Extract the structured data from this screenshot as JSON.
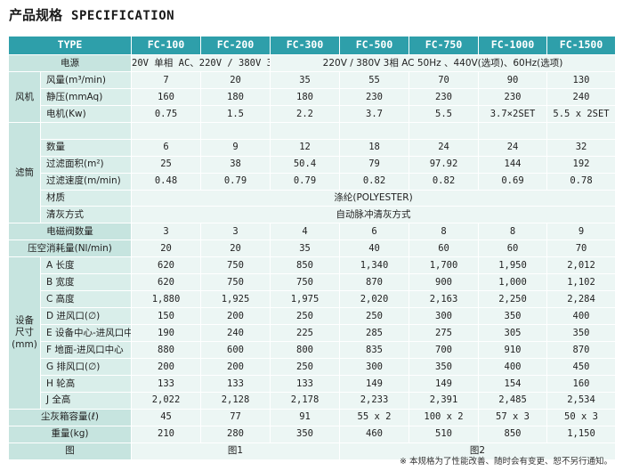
{
  "title": {
    "cn": "产品规格",
    "en": "SPECIFICATION"
  },
  "headers": [
    "TYPE",
    "FC-100",
    "FC-200",
    "FC-300",
    "FC-500",
    "FC-750",
    "FC-1000",
    "FC-1500"
  ],
  "power": {
    "label": "电源",
    "v100": "20V 单相 AC、220V / 380V 33相 50Hz",
    "rest": "220V / 380V 3相 AC 50Hz 、440V(选项)、60Hz(选项)"
  },
  "fan": {
    "group": "风机",
    "rows": [
      {
        "label": "风量(m³/min)",
        "values": [
          "7",
          "20",
          "35",
          "55",
          "70",
          "90",
          "130"
        ]
      },
      {
        "label": "静压(mmAq)",
        "values": [
          "160",
          "180",
          "180",
          "230",
          "230",
          "230",
          "240"
        ]
      },
      {
        "label": "电机(Kw)",
        "values": [
          "0.75",
          "1.5",
          "2.2",
          "3.7",
          "5.5",
          "3.7×2SET",
          "5.5 x 2SET"
        ]
      }
    ]
  },
  "filter": {
    "group": "滤筒",
    "rows": [
      {
        "label": "数量",
        "values": [
          "6",
          "9",
          "12",
          "18",
          "24",
          "24",
          "32"
        ]
      },
      {
        "label": "过滤面积(m²)",
        "values": [
          "25",
          "38",
          "50.4",
          "79",
          "97.92",
          "144",
          "192"
        ]
      },
      {
        "label": "过滤速度(m/min)",
        "values": [
          "0.48",
          "0.79",
          "0.79",
          "0.82",
          "0.82",
          "0.69",
          "0.78"
        ]
      }
    ],
    "material": {
      "label": "材质",
      "value": "涤纶(POLYESTER)"
    },
    "cleaning": {
      "label": "清灰方式",
      "value": "自动脉冲清灰方式"
    }
  },
  "valves": {
    "label": "电磁阀数量",
    "values": [
      "3",
      "3",
      "4",
      "6",
      "8",
      "8",
      "9"
    ]
  },
  "air": {
    "label": "压空消耗量(Nl/min)",
    "values": [
      "20",
      "20",
      "35",
      "40",
      "60",
      "60",
      "70"
    ]
  },
  "dims": {
    "group": "设备\n尺寸\n(mm)",
    "rows": [
      {
        "label": "A 长度",
        "values": [
          "620",
          "750",
          "850",
          "1,340",
          "1,700",
          "1,950",
          "2,012"
        ]
      },
      {
        "label": "B 宽度",
        "values": [
          "620",
          "750",
          "750",
          "870",
          "900",
          "1,000",
          "1,102"
        ]
      },
      {
        "label": "C 高度",
        "values": [
          "1,880",
          "1,925",
          "1,975",
          "2,020",
          "2,163",
          "2,250",
          "2,284"
        ]
      },
      {
        "label": "D 进风口(∅)",
        "values": [
          "150",
          "200",
          "250",
          "250",
          "300",
          "350",
          "400"
        ]
      },
      {
        "label": "E 设备中心-进风口中心",
        "values": [
          "190",
          "240",
          "225",
          "285",
          "275",
          "305",
          "350"
        ]
      },
      {
        "label": "F 地面-进风口中心",
        "values": [
          "880",
          "600",
          "800",
          "835",
          "700",
          "910",
          "870"
        ]
      },
      {
        "label": "G 排风口(∅)",
        "values": [
          "200",
          "200",
          "250",
          "300",
          "350",
          "400",
          "450"
        ]
      },
      {
        "label": "H 轮高",
        "values": [
          "133",
          "133",
          "133",
          "149",
          "149",
          "154",
          "160"
        ]
      },
      {
        "label": "J 全高",
        "values": [
          "2,022",
          "2,128",
          "2,178",
          "2,233",
          "2,391",
          "2,485",
          "2,534"
        ]
      }
    ]
  },
  "dust": {
    "label": "尘灰箱容量(ℓ)",
    "values": [
      "45",
      "77",
      "91",
      "55 x 2",
      "100 x 2",
      "57 x 3",
      "50 x 3"
    ]
  },
  "weight": {
    "label": "重量(kg)",
    "values": [
      "210",
      "280",
      "350",
      "460",
      "510",
      "850",
      "1,150"
    ]
  },
  "figure": {
    "label": "图",
    "fig1": "图1",
    "fig2": "图2"
  },
  "footnote": "※ 本规格为了性能改善、随时会有变更、恕不另行通知。"
}
